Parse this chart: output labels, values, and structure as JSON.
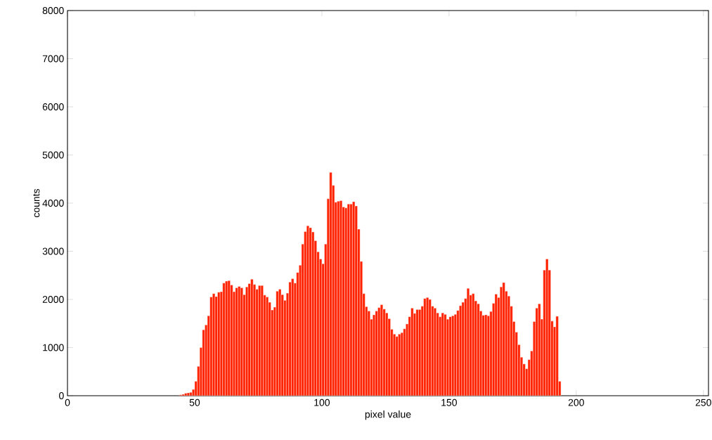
{
  "chart_data": {
    "type": "histogram",
    "xlabel": "pixel value",
    "ylabel": "counts",
    "color": "#ff2200",
    "bins": [
      44,
      45,
      46,
      47,
      48,
      49,
      50,
      51,
      52,
      53,
      54,
      55,
      56,
      57,
      58,
      59,
      60,
      61,
      62,
      63,
      64,
      65,
      66,
      67,
      68,
      69,
      70,
      71,
      72,
      73,
      74,
      75,
      76,
      77,
      78,
      79,
      80,
      81,
      82,
      83,
      84,
      85,
      86,
      87,
      88,
      89,
      90,
      91,
      92,
      93,
      94,
      95,
      96,
      97,
      98,
      99,
      100,
      101,
      102,
      103,
      104,
      105,
      106,
      107,
      108,
      109,
      110,
      111,
      112,
      113,
      114,
      115,
      116,
      117,
      118,
      119,
      120,
      121,
      122,
      123,
      124,
      125,
      126,
      127,
      128,
      129,
      130,
      131,
      132,
      133,
      134,
      135,
      136,
      137,
      138,
      139,
      140,
      141,
      142,
      143,
      144,
      145,
      146,
      147,
      148,
      149,
      150,
      151,
      152,
      153,
      154,
      155,
      156,
      157,
      158,
      159,
      160,
      161,
      162,
      163,
      164,
      165,
      166,
      167,
      168,
      169,
      170,
      171,
      172,
      173,
      174,
      175,
      176,
      177,
      178,
      179,
      180,
      181,
      182,
      183,
      184,
      185,
      186,
      187,
      188,
      189,
      190,
      191,
      192,
      193,
      194
    ],
    "values": [
      20,
      30,
      50,
      60,
      70,
      130,
      300,
      610,
      1000,
      1370,
      1470,
      1660,
      2050,
      2120,
      2060,
      2150,
      2160,
      2340,
      2380,
      2390,
      2300,
      2160,
      2240,
      2270,
      2240,
      2100,
      2260,
      2330,
      2420,
      2310,
      2210,
      2290,
      2290,
      2090,
      2050,
      1940,
      1780,
      1840,
      2170,
      2210,
      2100,
      1980,
      2130,
      2360,
      2430,
      2340,
      2560,
      2710,
      3150,
      3410,
      3530,
      3490,
      3400,
      3220,
      2990,
      2840,
      2740,
      3150,
      4090,
      4640,
      4370,
      4020,
      4040,
      4050,
      3920,
      3900,
      3980,
      3980,
      4030,
      3940,
      3460,
      2790,
      2120,
      1850,
      1760,
      1590,
      1680,
      1760,
      1830,
      1890,
      1800,
      1720,
      1600,
      1380,
      1280,
      1230,
      1280,
      1310,
      1390,
      1490,
      1640,
      1820,
      1710,
      1790,
      1790,
      1860,
      2020,
      2040,
      2000,
      1860,
      1820,
      1720,
      1640,
      1720,
      1690,
      1590,
      1640,
      1660,
      1690,
      1770,
      1870,
      1940,
      2020,
      2230,
      2090,
      2120,
      1970,
      1910,
      1760,
      1670,
      1680,
      1660,
      1750,
      1920,
      2110,
      2040,
      2260,
      2350,
      2170,
      2070,
      1860,
      1540,
      1320,
      1060,
      800,
      660,
      560,
      750,
      930,
      1540,
      1820,
      1910,
      1590,
      2610,
      2840,
      2610,
      1550,
      1430,
      1650,
      300
    ],
    "xlim": [
      0,
      252
    ],
    "ylim": [
      0,
      8000
    ],
    "xticks": [
      0,
      50,
      100,
      150,
      200,
      250
    ],
    "yticks": [
      0,
      1000,
      2000,
      3000,
      4000,
      5000,
      6000,
      7000,
      8000
    ]
  }
}
